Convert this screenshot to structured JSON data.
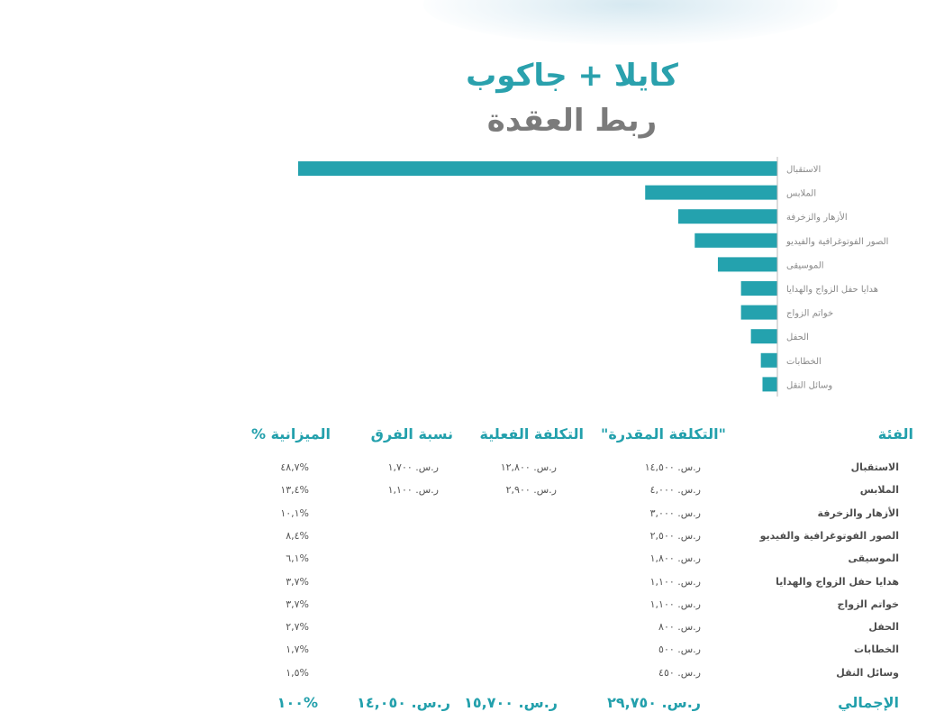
{
  "header": {
    "couple": "كايلا + جاكوب",
    "title": "ربط العقدة"
  },
  "chart_data": {
    "type": "bar",
    "orientation": "horizontal",
    "categories": [
      "الاستقبال",
      "الملابس",
      "الأزهار والزخرفة",
      "الصور الفوتوغرافية والفيديو",
      "الموسيقى",
      "هدايا حفل الزواج والهدايا",
      "خواتم الزواج",
      "الحفل",
      "الخطابات",
      "وسائل النقل"
    ],
    "values": [
      14500,
      4000,
      3000,
      2500,
      1800,
      1100,
      1100,
      800,
      500,
      450
    ],
    "xlim": [
      0,
      14500
    ],
    "grid": false,
    "legend": "none",
    "bar_color": "#24a2ae"
  },
  "table": {
    "headers": {
      "category": "الفئة",
      "estimated": "\"التكلفة المقدرة\"",
      "actual": "التكلفة الفعلية",
      "diff": "نسبة الفرق",
      "budget": "الميزانية %"
    },
    "rows": [
      {
        "category": "الاستقبال",
        "estimated": "ر.س. ١٤,٥٠٠",
        "actual": "ر.س. ١٢,٨٠٠",
        "diff": "ر.س. ١,٧٠٠",
        "budget": "%٤٨,٧"
      },
      {
        "category": "الملابس",
        "estimated": "ر.س. ٤,٠٠٠",
        "actual": "ر.س. ٢,٩٠٠",
        "diff": "ر.س. ١,١٠٠",
        "budget": "%١٣,٤"
      },
      {
        "category": "الأزهار والزخرفة",
        "estimated": "ر.س. ٣,٠٠٠",
        "actual": "",
        "diff": "",
        "budget": "%١٠,١"
      },
      {
        "category": "الصور الفوتوغرافية والفيديو",
        "estimated": "ر.س. ٢,٥٠٠",
        "actual": "",
        "diff": "",
        "budget": "%٨,٤"
      },
      {
        "category": "الموسيقى",
        "estimated": "ر.س. ١,٨٠٠",
        "actual": "",
        "diff": "",
        "budget": "%٦,١"
      },
      {
        "category": "هدايا حفل الزواج والهدايا",
        "estimated": "ر.س. ١,١٠٠",
        "actual": "",
        "diff": "",
        "budget": "%٣,٧"
      },
      {
        "category": "خواتم الزواج",
        "estimated": "ر.س. ١,١٠٠",
        "actual": "",
        "diff": "",
        "budget": "%٣,٧"
      },
      {
        "category": "الحفل",
        "estimated": "ر.س. ٨٠٠",
        "actual": "",
        "diff": "",
        "budget": "%٢,٧"
      },
      {
        "category": "الخطابات",
        "estimated": "ر.س. ٥٠٠",
        "actual": "",
        "diff": "",
        "budget": "%١,٧"
      },
      {
        "category": "وسائل النقل",
        "estimated": "ر.س. ٤٥٠",
        "actual": "",
        "diff": "",
        "budget": "%١,٥"
      }
    ],
    "total": {
      "label": "الإجمالي",
      "estimated": "ر.س. ٢٩,٧٥٠",
      "actual": "ر.س. ١٥,٧٠٠",
      "diff": "ر.س. ١٤,٠٥٠",
      "budget": "%١٠٠"
    }
  }
}
